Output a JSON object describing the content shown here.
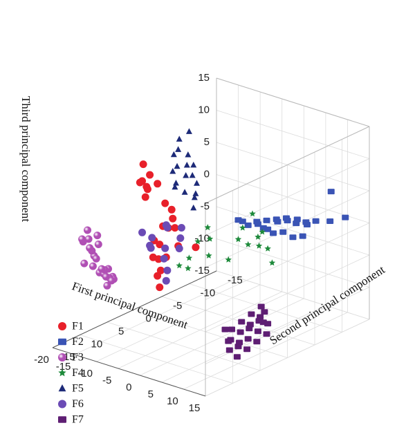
{
  "chart_data": {
    "type": "scatter",
    "dimensions": 3,
    "x_axis": {
      "label": "First principal component",
      "range": [
        -20,
        15
      ],
      "ticks": [
        -20,
        -15,
        -10,
        -5,
        0,
        5,
        10,
        15
      ],
      "tick_labels": [
        "-20",
        "-15",
        "-10",
        "-5",
        "0",
        "5",
        "10",
        "15"
      ]
    },
    "y_axis": {
      "label": "Second principal component",
      "range": [
        -15,
        15
      ],
      "ticks": [
        -15,
        -10,
        -5,
        0,
        5,
        10,
        15
      ],
      "tick_labels": [
        "-15",
        "-10",
        "-5",
        "0",
        "5",
        "10",
        "15"
      ]
    },
    "z_axis": {
      "label": "Third principal component",
      "range": [
        -15,
        15
      ],
      "ticks": [
        -15,
        -10,
        -5,
        0,
        5,
        10,
        15
      ],
      "tick_labels": [
        "-15",
        "-10",
        "-5",
        "0",
        "5",
        "10",
        "15"
      ]
    },
    "grid": true,
    "legend_position": "bottom-left",
    "series": [
      {
        "name": "F1",
        "marker": "circle",
        "color": "#e8202a",
        "points": [
          [
            -18,
            0,
            8
          ],
          [
            -17,
            1,
            6
          ],
          [
            -15,
            3,
            7
          ],
          [
            -14,
            2,
            8
          ],
          [
            -12,
            4,
            7
          ],
          [
            -11,
            5,
            8
          ],
          [
            -10,
            6,
            7
          ],
          [
            -16,
            -1,
            5
          ],
          [
            -13,
            0,
            3
          ],
          [
            -14,
            -2,
            1
          ],
          [
            -12,
            -1,
            -1
          ],
          [
            -11,
            1,
            0
          ],
          [
            -13,
            2,
            -2
          ],
          [
            -10,
            0,
            -3
          ],
          [
            -15,
            -3,
            -1
          ],
          [
            -16,
            -2,
            -2
          ],
          [
            -12,
            3,
            -4
          ],
          [
            -9,
            4,
            -5
          ],
          [
            -7,
            6,
            -2
          ],
          [
            -6,
            7,
            -4
          ],
          [
            -11,
            -4,
            -5
          ],
          [
            -8,
            5,
            -7
          ],
          [
            -14,
            -1,
            -6
          ],
          [
            -13,
            1,
            -3
          ]
        ]
      },
      {
        "name": "F2",
        "marker": "square",
        "color": "#3a54b5",
        "points": [
          [
            10,
            -12,
            5
          ],
          [
            12,
            -13,
            1
          ],
          [
            11,
            -11,
            1
          ],
          [
            9,
            -10,
            1
          ],
          [
            8,
            -9,
            1
          ],
          [
            7,
            -8,
            1
          ],
          [
            6,
            -7,
            2
          ],
          [
            5,
            -6,
            2
          ],
          [
            4,
            -5,
            2
          ],
          [
            3,
            -4,
            2
          ],
          [
            5,
            -8,
            1
          ],
          [
            6,
            -9,
            1
          ],
          [
            7,
            -10,
            0
          ],
          [
            4,
            -7,
            1
          ],
          [
            3,
            -6,
            0
          ],
          [
            4,
            -8,
            -1
          ],
          [
            5,
            -9,
            -2
          ],
          [
            6,
            -10,
            -2
          ],
          [
            2,
            -5,
            1
          ],
          [
            3,
            -7,
            -1
          ],
          [
            2,
            -6,
            0
          ],
          [
            1,
            -4,
            1
          ],
          [
            1,
            -3,
            2
          ],
          [
            0,
            -3,
            2
          ]
        ]
      },
      {
        "name": "F3",
        "marker": "sphere",
        "color": "#b04fb4",
        "points": [
          [
            -13,
            14,
            3
          ],
          [
            -12,
            13,
            2
          ],
          [
            -11,
            14,
            4
          ],
          [
            -12,
            15,
            5
          ],
          [
            -13,
            13,
            0
          ],
          [
            -12,
            14,
            -1
          ],
          [
            -11,
            13,
            -2
          ],
          [
            -13,
            12,
            -3
          ],
          [
            -12,
            12,
            -3
          ],
          [
            -11,
            12,
            -2
          ],
          [
            -10,
            12,
            -3
          ],
          [
            -10,
            13,
            -4
          ],
          [
            -11,
            11,
            -4
          ],
          [
            -12,
            11,
            -4
          ],
          [
            -13,
            11,
            -3
          ],
          [
            -10,
            14,
            -1
          ],
          [
            -10,
            15,
            1
          ],
          [
            -11,
            15,
            2
          ],
          [
            -14,
            13,
            1
          ],
          [
            -13,
            15,
            3
          ],
          [
            -12,
            16,
            4
          ],
          [
            -14,
            14,
            -1
          ],
          [
            -9,
            13,
            -3
          ],
          [
            -9,
            14,
            -2
          ]
        ]
      },
      {
        "name": "F4",
        "marker": "star",
        "color": "#1e8a3b",
        "points": [
          [
            2,
            -4,
            3
          ],
          [
            1,
            -3,
            1
          ],
          [
            3,
            -5,
            0
          ],
          [
            2,
            -5,
            -1
          ],
          [
            1,
            -4,
            -2
          ],
          [
            0,
            -3,
            -1
          ],
          [
            3,
            -6,
            -3
          ],
          [
            4,
            -6,
            -5
          ],
          [
            1,
            -6,
            -3
          ],
          [
            -1,
            -2,
            -4
          ],
          [
            -3,
            0,
            -3
          ],
          [
            -5,
            2,
            -3
          ],
          [
            -4,
            3,
            -4
          ],
          [
            -6,
            3,
            -4
          ],
          [
            -2,
            1,
            2
          ],
          [
            -4,
            -1,
            -1
          ],
          [
            -3,
            2,
            0
          ]
        ]
      },
      {
        "name": "F5",
        "marker": "triangle",
        "color": "#1d2a78",
        "points": [
          [
            -10,
            -2,
            14
          ],
          [
            -11,
            -1,
            13
          ],
          [
            -10,
            0,
            12
          ],
          [
            -9,
            -1,
            11
          ],
          [
            -8,
            0,
            10
          ],
          [
            -9,
            1,
            10
          ],
          [
            -7,
            1,
            9
          ],
          [
            -8,
            2,
            8
          ],
          [
            -7,
            3,
            8
          ],
          [
            -6,
            2,
            7
          ],
          [
            -9,
            -2,
            9
          ],
          [
            -8,
            -1,
            8
          ],
          [
            -7,
            -1,
            7
          ],
          [
            -6,
            0,
            6
          ],
          [
            -5,
            1,
            6
          ],
          [
            -4,
            2,
            5
          ],
          [
            -11,
            0,
            11
          ],
          [
            -10,
            1,
            9
          ]
        ]
      },
      {
        "name": "F6",
        "marker": "circle",
        "color": "#6b4bb5",
        "points": [
          [
            -14,
            -1,
            -1
          ],
          [
            -15,
            -2,
            -2
          ],
          [
            -13,
            -3,
            -2
          ],
          [
            -12,
            -2,
            -3
          ],
          [
            -16,
            0,
            -3
          ],
          [
            -17,
            1,
            -2
          ],
          [
            -14,
            2,
            -3
          ],
          [
            -13,
            0,
            -4
          ],
          [
            -11,
            -1,
            -4
          ],
          [
            -15,
            1,
            -4
          ],
          [
            -12,
            1,
            -5
          ],
          [
            -10,
            2,
            -6
          ],
          [
            -9,
            3,
            -7
          ]
        ]
      },
      {
        "name": "F7",
        "marker": "square",
        "color": "#5e1e73",
        "points": [
          [
            4,
            -4,
            -11
          ],
          [
            5,
            -3,
            -12
          ],
          [
            6,
            -2,
            -12
          ],
          [
            7,
            -1,
            -13
          ],
          [
            8,
            0,
            -14
          ],
          [
            3,
            -3,
            -12
          ],
          [
            4,
            -2,
            -13
          ],
          [
            5,
            -1,
            -13
          ],
          [
            6,
            0,
            -14
          ],
          [
            7,
            1,
            -15
          ],
          [
            2,
            -2,
            -13
          ],
          [
            3,
            -1,
            -14
          ],
          [
            4,
            0,
            -15
          ],
          [
            5,
            1,
            -15
          ],
          [
            6,
            2,
            -16
          ],
          [
            1,
            -1,
            -14
          ],
          [
            2,
            0,
            -15
          ],
          [
            3,
            1,
            -16
          ],
          [
            8,
            -2,
            -12
          ],
          [
            9,
            -1,
            -13
          ],
          [
            2,
            1,
            -13
          ],
          [
            6,
            -3,
            -11
          ],
          [
            7,
            -2,
            -12
          ],
          [
            4,
            2,
            -14
          ]
        ]
      }
    ]
  }
}
